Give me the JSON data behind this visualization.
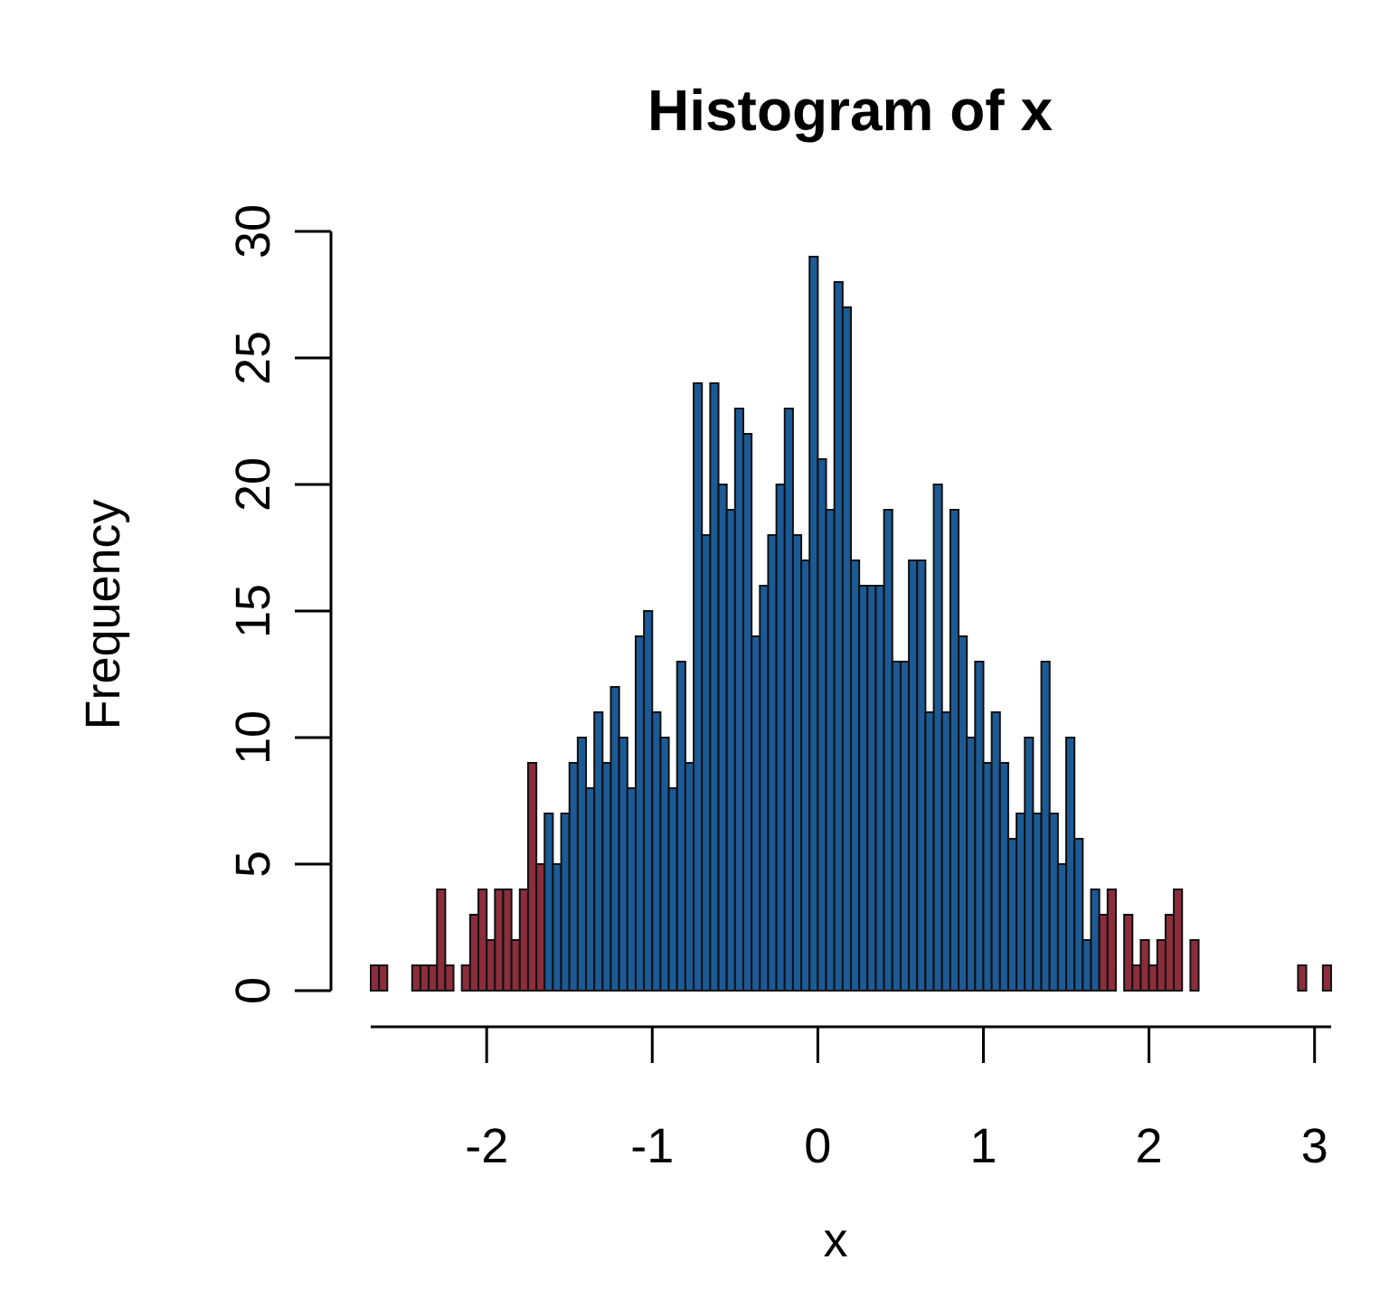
{
  "chart_data": {
    "type": "histogram",
    "title": "Histogram of x",
    "xlabel": "x",
    "ylabel": "Frequency",
    "bins": [
      -2.7,
      -2.65,
      -2.6,
      -2.55,
      -2.5,
      -2.45,
      -2.4,
      -2.35,
      -2.3,
      -2.25,
      -2.2,
      -2.15,
      -2.1,
      -2.05,
      -2.0,
      -1.95,
      -1.9,
      -1.85,
      -1.8,
      -1.75,
      -1.7,
      -1.65,
      -1.6,
      -1.55,
      -1.5,
      -1.45,
      -1.4,
      -1.35,
      -1.3,
      -1.25,
      -1.2,
      -1.15,
      -1.1,
      -1.05,
      -1.0,
      -0.95,
      -0.9,
      -0.85,
      -0.8,
      -0.75,
      -0.7,
      -0.65,
      -0.6,
      -0.55,
      -0.5,
      -0.45,
      -0.4,
      -0.35,
      -0.3,
      -0.25,
      -0.2,
      -0.15,
      -0.1,
      -0.05,
      0.0,
      0.05,
      0.1,
      0.15,
      0.2,
      0.25,
      0.3,
      0.35,
      0.4,
      0.45,
      0.5,
      0.55,
      0.6,
      0.65,
      0.7,
      0.75,
      0.8,
      0.85,
      0.9,
      0.95,
      1.0,
      1.05,
      1.1,
      1.15,
      1.2,
      1.25,
      1.3,
      1.35,
      1.4,
      1.45,
      1.5,
      1.55,
      1.6,
      1.65,
      1.7,
      1.75,
      1.8,
      1.85,
      1.9,
      1.95,
      2.0,
      2.05,
      2.1,
      2.15,
      2.2,
      2.25,
      2.3,
      2.35,
      2.4,
      2.45,
      2.5,
      2.55,
      2.6,
      2.65,
      2.7,
      2.75,
      2.8,
      2.85,
      2.9,
      2.95,
      3.0,
      3.05,
      3.1
    ],
    "values": [
      1,
      1,
      0,
      0,
      0,
      1,
      1,
      1,
      4,
      1,
      0,
      1,
      3,
      4,
      2,
      4,
      4,
      2,
      4,
      9,
      5,
      7,
      5,
      7,
      9,
      10,
      8,
      11,
      9,
      12,
      10,
      8,
      14,
      15,
      11,
      10,
      8,
      13,
      9,
      24,
      18,
      24,
      20,
      19,
      23,
      22,
      14,
      16,
      18,
      20,
      23,
      18,
      17,
      29,
      21,
      19,
      28,
      27,
      17,
      16,
      16,
      16,
      19,
      13,
      13,
      17,
      17,
      11,
      20,
      11,
      19,
      14,
      10,
      13,
      9,
      11,
      9,
      6,
      7,
      10,
      7,
      13,
      7,
      5,
      10,
      6,
      2,
      4,
      3,
      4,
      0,
      3,
      1,
      2,
      1,
      2,
      3,
      4,
      0,
      2,
      0,
      0,
      0,
      0,
      0,
      0,
      0,
      0,
      0,
      0,
      0,
      0,
      1,
      0,
      0,
      1
    ],
    "colors": [
      "#8b2d3b",
      "#8b2d3b",
      "#8b2d3b",
      "#8b2d3b",
      "#8b2d3b",
      "#8b2d3b",
      "#8b2d3b",
      "#8b2d3b",
      "#8b2d3b",
      "#8b2d3b",
      "#8b2d3b",
      "#8b2d3b",
      "#8b2d3b",
      "#8b2d3b",
      "#8b2d3b",
      "#8b2d3b",
      "#8b2d3b",
      "#8b2d3b",
      "#8b2d3b",
      "#8b2d3b",
      "#8b2d3b",
      "#1c5a96",
      "#1c5a96",
      "#1c5a96",
      "#1c5a96",
      "#1c5a96",
      "#1c5a96",
      "#1c5a96",
      "#1c5a96",
      "#1c5a96",
      "#1c5a96",
      "#1c5a96",
      "#1c5a96",
      "#1c5a96",
      "#1c5a96",
      "#1c5a96",
      "#1c5a96",
      "#1c5a96",
      "#1c5a96",
      "#1c5a96",
      "#1c5a96",
      "#1c5a96",
      "#1c5a96",
      "#1c5a96",
      "#1c5a96",
      "#1c5a96",
      "#1c5a96",
      "#1c5a96",
      "#1c5a96",
      "#1c5a96",
      "#1c5a96",
      "#1c5a96",
      "#1c5a96",
      "#1c5a96",
      "#1c5a96",
      "#1c5a96",
      "#1c5a96",
      "#1c5a96",
      "#1c5a96",
      "#1c5a96",
      "#1c5a96",
      "#1c5a96",
      "#1c5a96",
      "#1c5a96",
      "#1c5a96",
      "#1c5a96",
      "#1c5a96",
      "#1c5a96",
      "#1c5a96",
      "#1c5a96",
      "#1c5a96",
      "#1c5a96",
      "#1c5a96",
      "#1c5a96",
      "#1c5a96",
      "#1c5a96",
      "#1c5a96",
      "#1c5a96",
      "#1c5a96",
      "#1c5a96",
      "#1c5a96",
      "#1c5a96",
      "#1c5a96",
      "#1c5a96",
      "#1c5a96",
      "#1c5a96",
      "#1c5a96",
      "#1c5a96",
      "#8b2d3b",
      "#8b2d3b",
      "#8b2d3b",
      "#8b2d3b",
      "#8b2d3b",
      "#8b2d3b",
      "#8b2d3b",
      "#8b2d3b",
      "#8b2d3b",
      "#8b2d3b",
      "#8b2d3b",
      "#8b2d3b",
      "#8b2d3b",
      "#8b2d3b",
      "#8b2d3b",
      "#8b2d3b",
      "#8b2d3b",
      "#8b2d3b",
      "#8b2d3b",
      "#8b2d3b",
      "#8b2d3b",
      "#8b2d3b",
      "#8b2d3b",
      "#8b2d3b",
      "#8b2d3b",
      "#8b2d3b",
      "#8b2d3b",
      "#8b2d3b"
    ],
    "xlim": [
      -2.7,
      3.1
    ],
    "ylim": [
      0,
      30
    ],
    "xticks": [
      -2,
      -1,
      0,
      1,
      2,
      3
    ],
    "yticks": [
      0,
      5,
      10,
      15,
      20,
      25,
      30
    ]
  }
}
